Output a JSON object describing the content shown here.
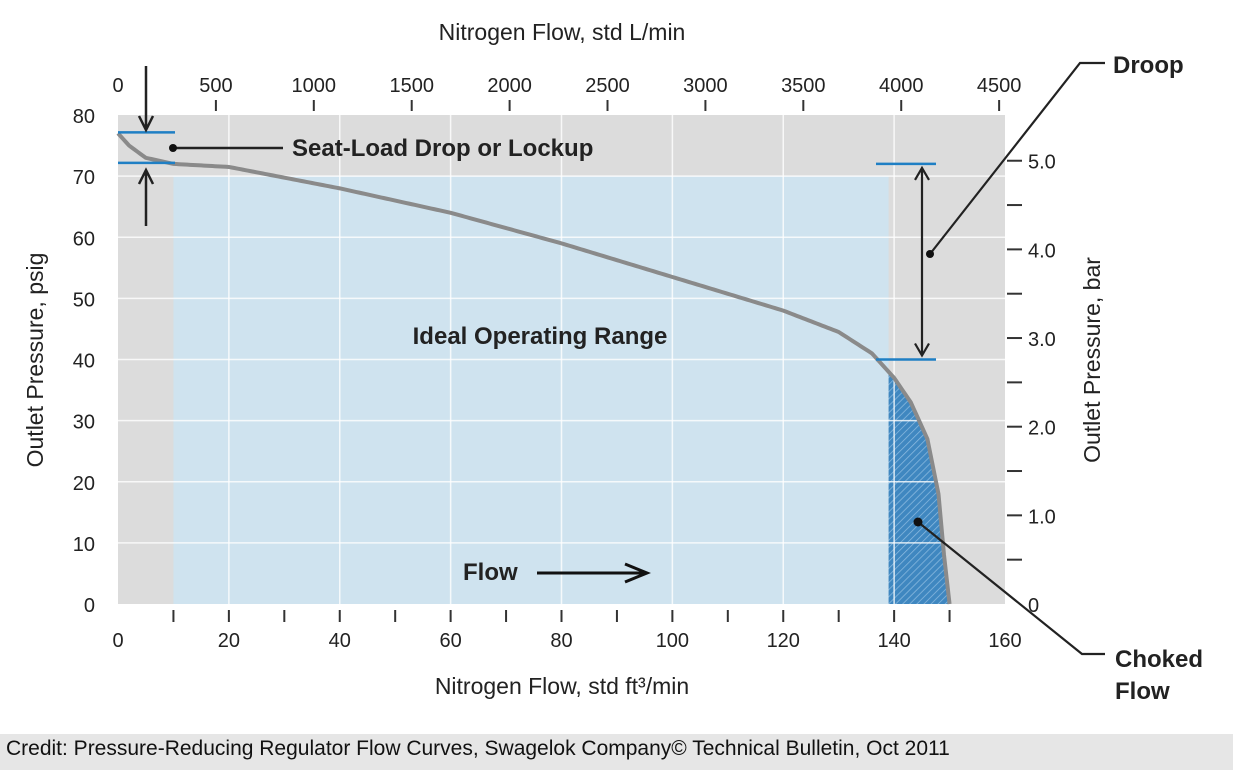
{
  "chart_data": {
    "type": "line",
    "title": "",
    "xlabel": "Nitrogen Flow, std ft³/min",
    "x2label": "Nitrogen Flow, std L/min",
    "ylabel": "Outlet Pressure, psig",
    "y2label": "Outlet Pressure, bar",
    "xlim": [
      0,
      160
    ],
    "ylim": [
      0,
      80
    ],
    "x2lim": [
      0,
      4530
    ],
    "y2lim": [
      0,
      5.52
    ],
    "xticks": [
      "0",
      "20",
      "40",
      "60",
      "80",
      "100",
      "120",
      "140",
      "160"
    ],
    "yticks": [
      "0",
      "10",
      "20",
      "30",
      "40",
      "50",
      "60",
      "70",
      "80"
    ],
    "x2ticks": [
      "0",
      "500",
      "1000",
      "1500",
      "2000",
      "2500",
      "3000",
      "3500",
      "4000",
      "4500"
    ],
    "y2ticks": [
      "0",
      "1.0",
      "2.0",
      "3.0",
      "4.0",
      "5.0"
    ],
    "grid": true,
    "curve": {
      "x": [
        0,
        2,
        5,
        10,
        20,
        40,
        60,
        80,
        100,
        120,
        130,
        136,
        140,
        143,
        146,
        148,
        149,
        150
      ],
      "y": [
        77,
        75,
        73,
        72,
        71.5,
        68,
        64,
        59,
        53.5,
        48,
        44.5,
        41,
        37,
        33,
        27,
        18,
        8,
        0
      ]
    },
    "regions": {
      "ideal_operating_range": {
        "label": "Ideal Operating Range",
        "x": [
          10,
          139
        ],
        "y": [
          0,
          70
        ]
      },
      "choked_flow": {
        "label": "Choked Flow",
        "x": [
          139,
          150
        ]
      }
    },
    "annotations": {
      "seat_load": {
        "label": "Seat-Load Drop or Lockup",
        "y": [
          77,
          72
        ]
      },
      "droop": {
        "label": "Droop",
        "y": [
          72,
          40
        ]
      },
      "flow": {
        "label": "Flow"
      }
    },
    "colors": {
      "background": "#dcdcdc",
      "ideal": "#cfe3ef",
      "choked": "#3f87c0",
      "curve": "#8a8a8a",
      "marker": "#1f7fc4"
    }
  },
  "credit": "Credit: Pressure-Reducing Regulator Flow Curves, Swagelok Company© Technical Bulletin, Oct 2011"
}
